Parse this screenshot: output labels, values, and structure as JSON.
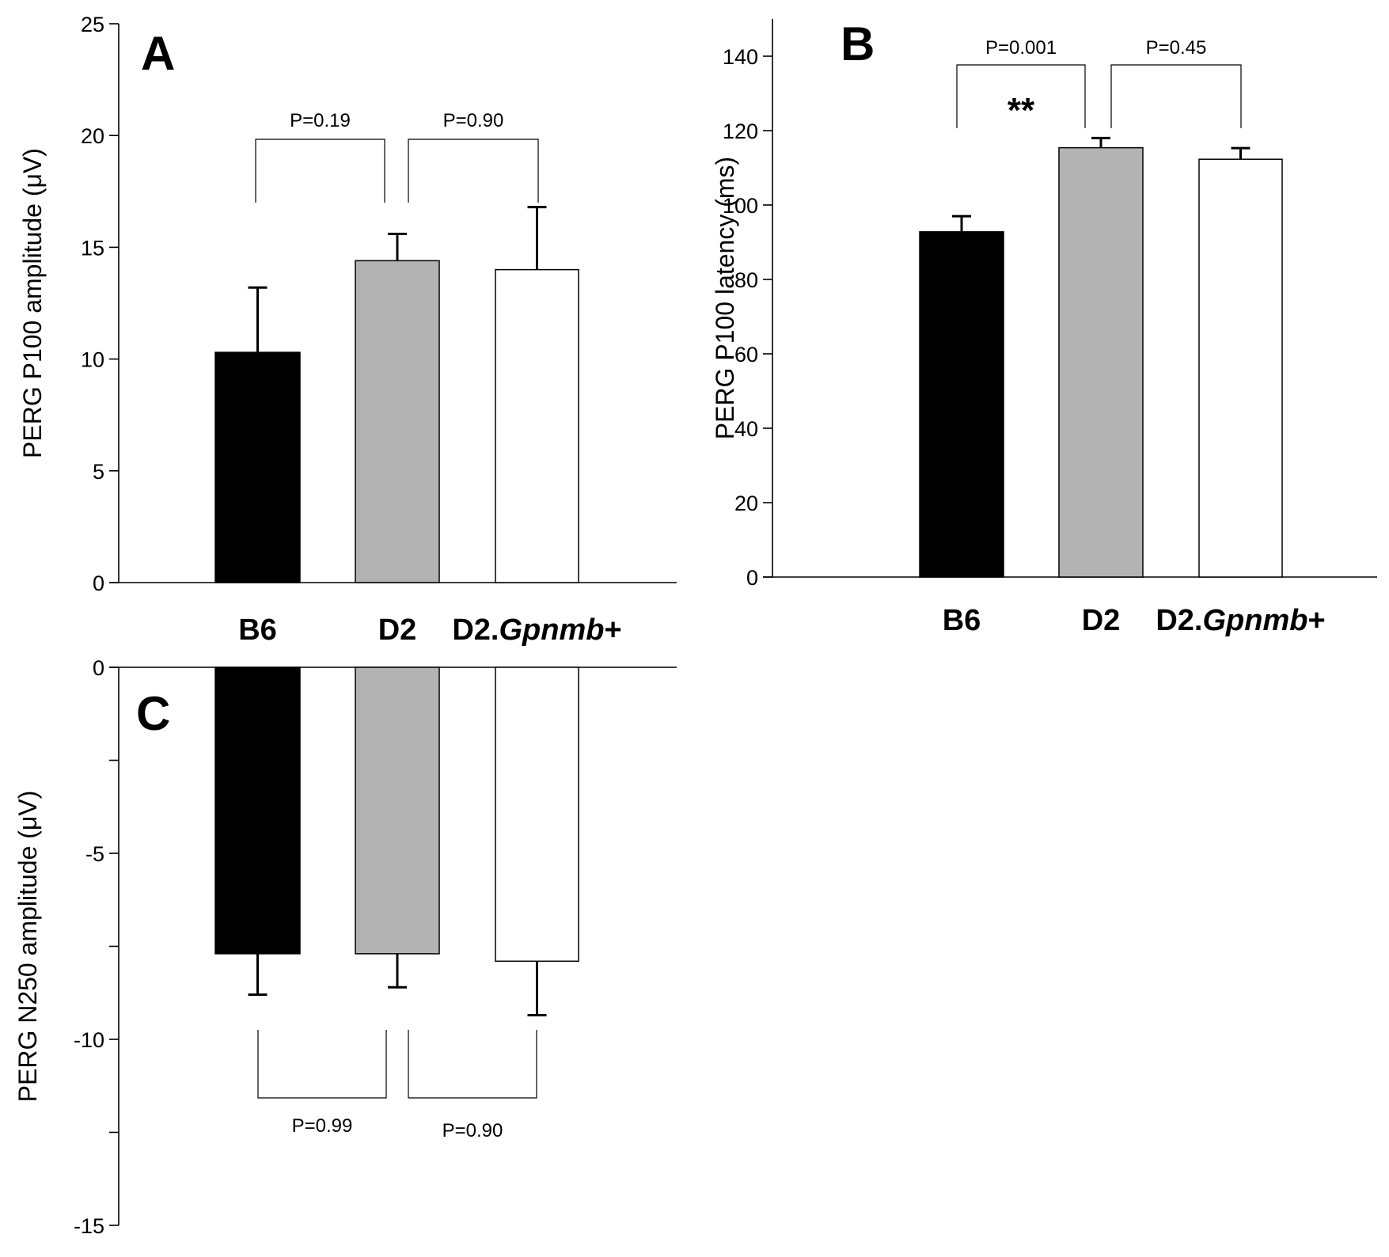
{
  "categories": [
    {
      "prefix": "B6",
      "italic": ""
    },
    {
      "prefix": "D2",
      "italic": ""
    },
    {
      "prefix": "D2.",
      "italic": "Gpnmb",
      "suffix": "+"
    }
  ],
  "colors": {
    "B6": "#000000",
    "D2": "#b3b3b3",
    "D2.Gpnmb+": "#ffffff",
    "axis": "#000000"
  },
  "chart_data": [
    {
      "panel": "A",
      "type": "bar",
      "categories": [
        "B6",
        "D2",
        "D2.Gpnmb+"
      ],
      "values": [
        10.3,
        14.4,
        14.0
      ],
      "error_upper": [
        13.2,
        15.6,
        16.8
      ],
      "ylabel": "PERG P100 amplitude (μV)",
      "xlabel": "",
      "ylim": [
        0,
        25
      ],
      "yticks": [
        0,
        5,
        10,
        15,
        20,
        25
      ],
      "grid": false,
      "comparisons": [
        {
          "between": [
            "B6",
            "D2"
          ],
          "label": "P=0.19",
          "stars": ""
        },
        {
          "between": [
            "D2",
            "D2.Gpnmb+"
          ],
          "label": "P=0.90",
          "stars": ""
        }
      ]
    },
    {
      "panel": "B",
      "type": "bar",
      "categories": [
        "B6",
        "D2",
        "D2.Gpnmb+"
      ],
      "values": [
        92.8,
        115.4,
        112.3
      ],
      "error_upper": [
        97.0,
        118.0,
        115.3
      ],
      "ylabel": "PERG P100 latency (ms)",
      "xlabel": "",
      "ylim": [
        0,
        150
      ],
      "yticks": [
        0,
        20,
        40,
        60,
        80,
        100,
        120,
        140
      ],
      "grid": false,
      "comparisons": [
        {
          "between": [
            "B6",
            "D2"
          ],
          "label": "P=0.001",
          "stars": "**"
        },
        {
          "between": [
            "D2",
            "D2.Gpnmb+"
          ],
          "label": "P=0.45",
          "stars": ""
        }
      ]
    },
    {
      "panel": "C",
      "type": "bar",
      "categories": [
        "B6",
        "D2",
        "D2.Gpnmb+"
      ],
      "values": [
        -7.7,
        -7.7,
        -7.9
      ],
      "error_lower": [
        -8.8,
        -8.6,
        -9.35
      ],
      "ylabel": "PERG N250 amplitude (μV)",
      "xlabel": "",
      "ylim": [
        -15,
        0
      ],
      "yticks": [
        0,
        -5,
        -10,
        -15
      ],
      "minor_yticks": [
        -2.5,
        -7.5,
        -12.5
      ],
      "grid": false,
      "comparisons": [
        {
          "between": [
            "B6",
            "D2"
          ],
          "label": "P=0.99",
          "stars": ""
        },
        {
          "between": [
            "D2",
            "D2.Gpnmb+"
          ],
          "label": "P=0.90",
          "stars": ""
        }
      ]
    }
  ]
}
